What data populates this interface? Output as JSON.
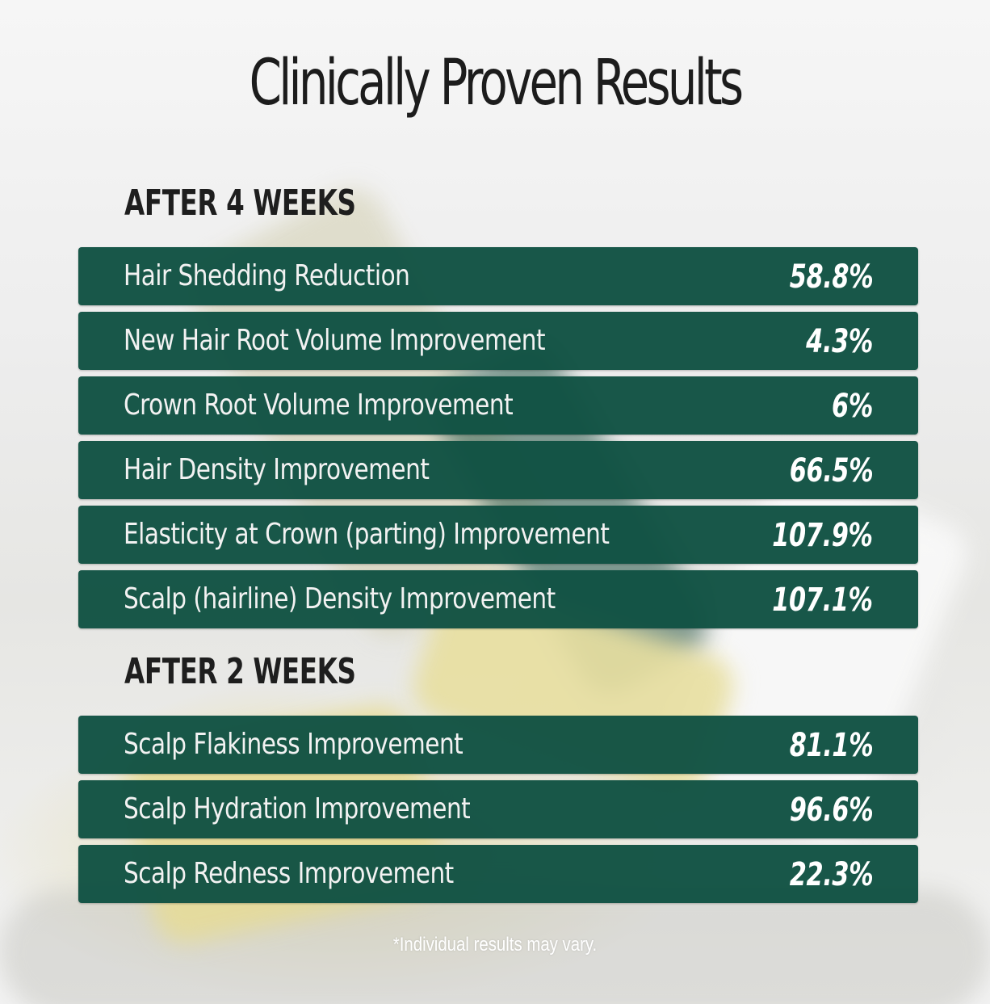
{
  "title": "Clinically Proven Results",
  "sections": [
    {
      "heading": "AFTER 4 WEEKS",
      "rows": [
        {
          "label": "Hair Shedding Reduction",
          "value": "58.8%"
        },
        {
          "label": "New Hair Root Volume Improvement",
          "value": "4.3%"
        },
        {
          "label": "Crown Root Volume Improvement",
          "value": "6%"
        },
        {
          "label": "Hair Density Improvement",
          "value": "66.5%"
        },
        {
          "label": "Elasticity at Crown (parting) Improvement",
          "value": "107.9%"
        },
        {
          "label": "Scalp (hairline) Density Improvement",
          "value": "107.1%"
        }
      ]
    },
    {
      "heading": "AFTER 2 WEEKS",
      "rows": [
        {
          "label": "Scalp Flakiness Improvement",
          "value": "81.1%"
        },
        {
          "label": "Scalp Hydration Improvement",
          "value": "96.6%"
        },
        {
          "label": "Scalp Redness Improvement",
          "value": "22.3%"
        }
      ]
    }
  ],
  "disclaimer": "*Individual results may vary.",
  "colors": {
    "row_background": "#115243",
    "row_text": "#ffffff",
    "title_text": "#1c1c1c"
  }
}
